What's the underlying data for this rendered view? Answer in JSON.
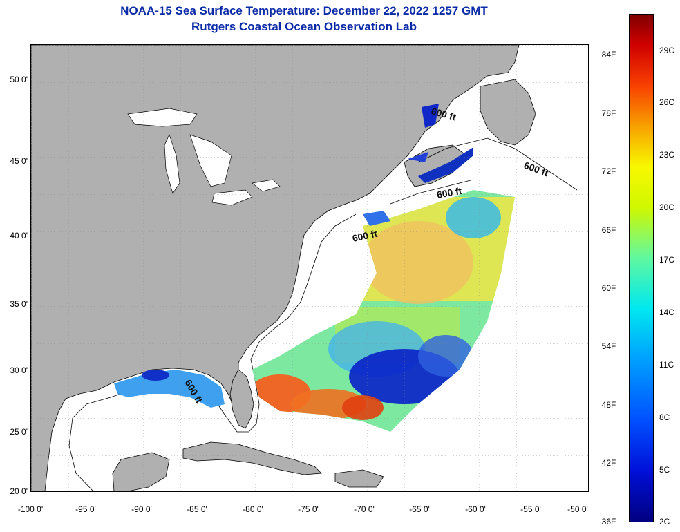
{
  "title": {
    "line1": "NOAA-15 Sea Surface Temperature:  December 22, 2022 1257 GMT",
    "line2": "Rutgers Coastal Ocean Observation Lab"
  },
  "map": {
    "land_color": "#b0b0b0",
    "ocean_color": "#ffffff",
    "lat_ticks": [
      "50 0'",
      "45 0'",
      "40 0'",
      "35 0'",
      "30 0'",
      "25 0'",
      "20 0'"
    ],
    "lon_ticks": [
      "-100 0'",
      "-95 0'",
      "-90 0'",
      "-85 0'",
      "-80 0'",
      "-75 0'",
      "-70 0'",
      "-65 0'",
      "-60 0'",
      "-55 0'",
      "-50 0'"
    ],
    "depth_labels": [
      "600 ft",
      "600 ft",
      "600 ft",
      "600 ft",
      "600 ft"
    ]
  },
  "colorbar": {
    "fahrenheit_labels": [
      "84F",
      "78F",
      "72F",
      "66F",
      "60F",
      "54F",
      "48F",
      "42F",
      "36F"
    ],
    "celsius_labels": [
      "29C",
      "26C",
      "23C",
      "20C",
      "17C",
      "14C",
      "11C",
      "8C",
      "5C",
      "2C"
    ],
    "low_color": "#000080",
    "high_color": "#800000"
  }
}
